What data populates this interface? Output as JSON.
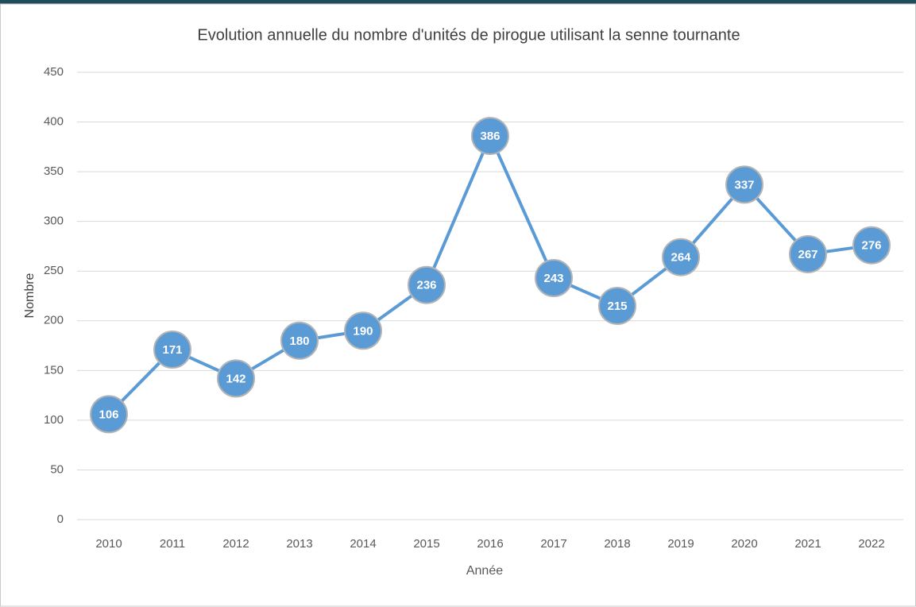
{
  "chart_data": {
    "type": "line",
    "title": "Evolution annuelle du nombre d'unités de pirogue utilisant la senne tournante",
    "x_label": "Année",
    "y_label": "Nombre",
    "categories": [
      "2010",
      "2011",
      "2012",
      "2013",
      "2014",
      "2015",
      "2016",
      "2017",
      "2018",
      "2019",
      "2020",
      "2021",
      "2022"
    ],
    "series": [
      {
        "name": "Nombre",
        "color": "#5b9bd5",
        "values": [
          106,
          171,
          142,
          180,
          190,
          236,
          386,
          243,
          215,
          264,
          337,
          267,
          276
        ]
      }
    ],
    "ylim": [
      0,
      450
    ],
    "yticks": [
      0,
      50,
      100,
      150,
      200,
      250,
      300,
      350,
      400,
      450
    ],
    "grid": true
  }
}
